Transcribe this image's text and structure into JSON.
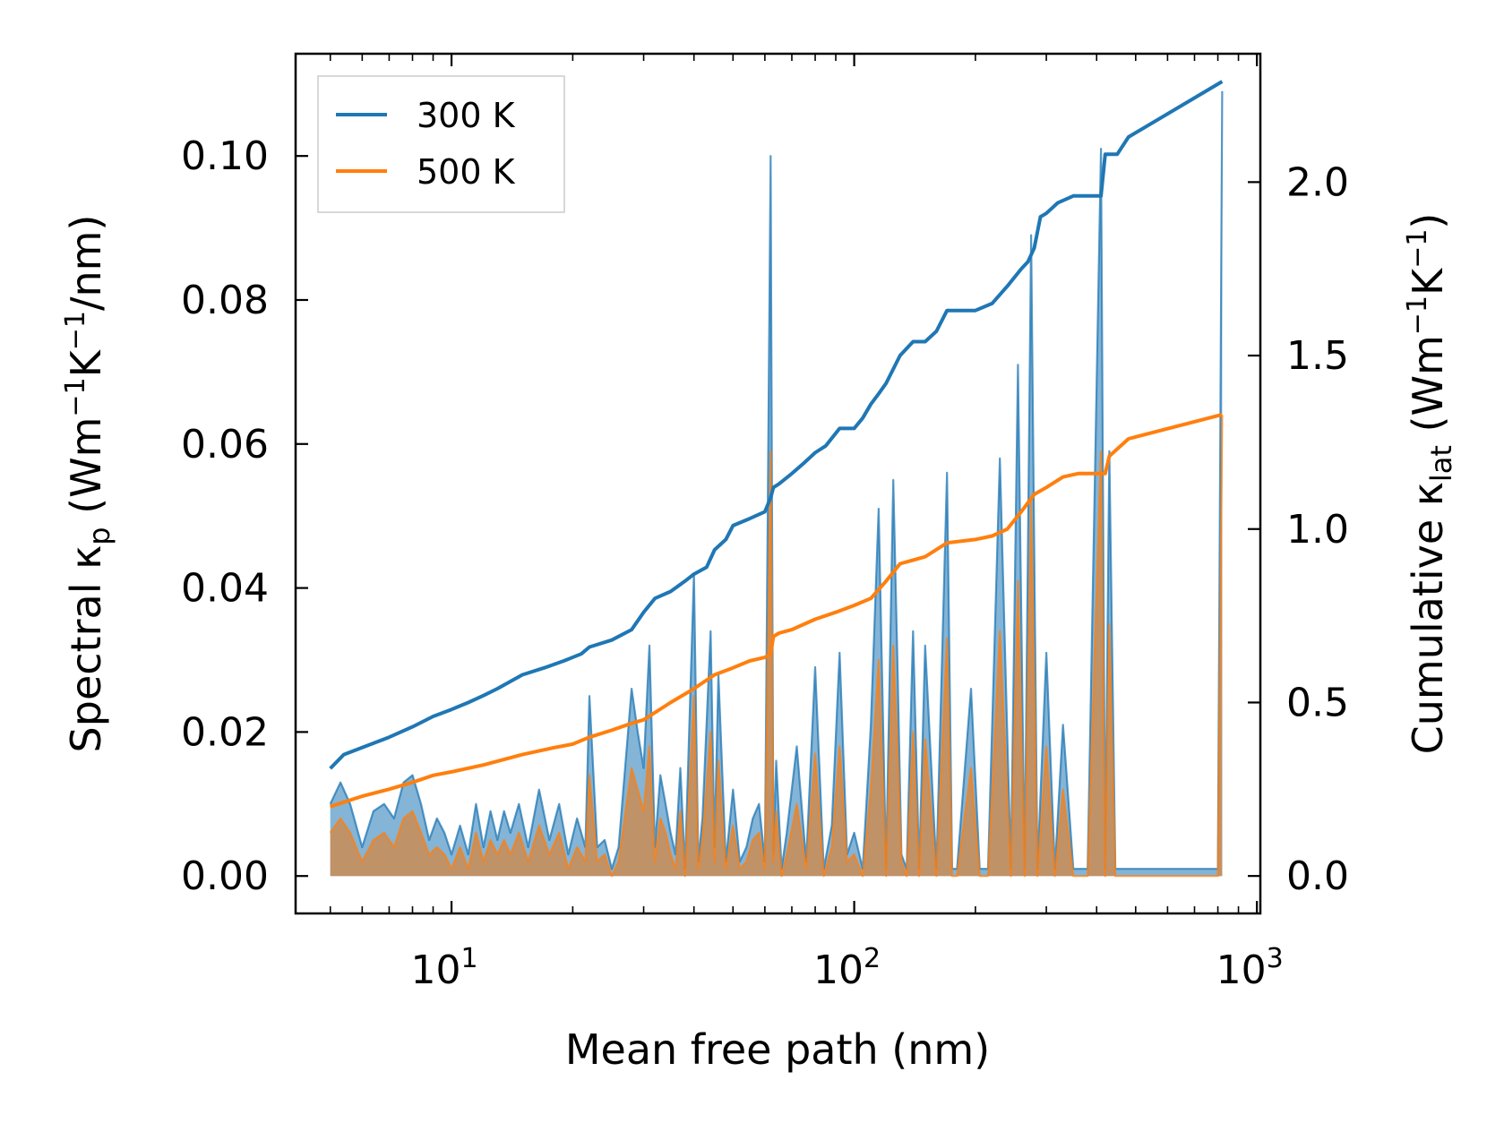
{
  "chart_data": {
    "type": "line",
    "x_scale": "log",
    "xlabel": "Mean free path (nm)",
    "ylabel_left": {
      "prefix": "Spectral κ",
      "sub": "p",
      "units_open": " (Wm",
      "exp1": "−1",
      "mid": "K",
      "exp2": "−1",
      "tail": "/nm)"
    },
    "ylabel_right": {
      "prefix": "Cumulative κ",
      "sub": "lat",
      "units_open": " (Wm",
      "exp1": "−1",
      "mid": "K",
      "exp2": "−1",
      "tail": ")"
    },
    "xlim": [
      4.1,
      1020
    ],
    "ylim_left": [
      -0.0052,
      0.1142
    ],
    "ylim_right": [
      -0.108,
      2.37
    ],
    "x_ticks": [
      {
        "base": "10",
        "exp": "1",
        "value": 10
      },
      {
        "base": "10",
        "exp": "2",
        "value": 100
      },
      {
        "base": "10",
        "exp": "3",
        "value": 1000
      }
    ],
    "y_left_ticks": [
      {
        "label": "0.00",
        "value": 0
      },
      {
        "label": "0.02",
        "value": 0.02
      },
      {
        "label": "0.04",
        "value": 0.04
      },
      {
        "label": "0.06",
        "value": 0.06
      },
      {
        "label": "0.08",
        "value": 0.08
      },
      {
        "label": "0.10",
        "value": 0.1
      }
    ],
    "y_right_ticks": [
      {
        "label": "0.0",
        "value": 0
      },
      {
        "label": "0.5",
        "value": 0.5
      },
      {
        "label": "1.0",
        "value": 1.0
      },
      {
        "label": "1.5",
        "value": 1.5
      },
      {
        "label": "2.0",
        "value": 2.0
      }
    ],
    "legend": {
      "position": "top-left",
      "entries": [
        {
          "label": "300 K",
          "color": "#1f77b4"
        },
        {
          "label": "500 K",
          "color": "#ff7f0e"
        }
      ]
    },
    "series": [
      {
        "name": "300 K",
        "color": "#1f77b4",
        "axis": "right",
        "kind": "cumulative",
        "x": [
          5,
          5.4,
          6,
          7,
          8,
          9,
          10,
          11,
          12,
          13,
          15,
          17,
          19,
          21,
          22,
          25,
          28,
          30,
          32,
          35,
          38,
          40,
          43,
          45,
          48,
          50,
          55,
          60,
          62,
          63,
          65,
          70,
          75,
          80,
          85,
          92,
          100,
          105,
          110,
          115,
          120,
          130,
          140,
          150,
          160,
          170,
          200,
          220,
          240,
          260,
          270,
          280,
          290,
          300,
          320,
          350,
          410,
          420,
          430,
          450,
          480,
          820
        ],
        "y": [
          0.31,
          0.35,
          0.37,
          0.4,
          0.43,
          0.46,
          0.48,
          0.5,
          0.52,
          0.54,
          0.58,
          0.6,
          0.62,
          0.64,
          0.66,
          0.68,
          0.71,
          0.76,
          0.8,
          0.82,
          0.85,
          0.87,
          0.89,
          0.94,
          0.97,
          1.01,
          1.03,
          1.05,
          1.09,
          1.12,
          1.13,
          1.16,
          1.19,
          1.22,
          1.24,
          1.29,
          1.29,
          1.32,
          1.36,
          1.39,
          1.42,
          1.5,
          1.54,
          1.54,
          1.57,
          1.63,
          1.63,
          1.65,
          1.7,
          1.75,
          1.77,
          1.81,
          1.9,
          1.91,
          1.94,
          1.96,
          1.96,
          2.08,
          2.08,
          2.08,
          2.13,
          2.29
        ]
      },
      {
        "name": "500 K",
        "color": "#ff7f0e",
        "axis": "right",
        "kind": "cumulative",
        "x": [
          5,
          6,
          7,
          8,
          9,
          10,
          12,
          15,
          18,
          20,
          22,
          25,
          28,
          30,
          35,
          40,
          45,
          50,
          55,
          60,
          62,
          63,
          65,
          70,
          80,
          90,
          100,
          110,
          120,
          130,
          150,
          170,
          200,
          220,
          240,
          260,
          280,
          300,
          330,
          360,
          420,
          430,
          480,
          820
        ],
        "y": [
          0.2,
          0.23,
          0.25,
          0.27,
          0.29,
          0.3,
          0.32,
          0.35,
          0.37,
          0.38,
          0.4,
          0.42,
          0.44,
          0.45,
          0.5,
          0.54,
          0.58,
          0.6,
          0.62,
          0.63,
          0.64,
          0.69,
          0.7,
          0.71,
          0.74,
          0.76,
          0.78,
          0.8,
          0.85,
          0.9,
          0.92,
          0.96,
          0.97,
          0.98,
          1.0,
          1.05,
          1.1,
          1.12,
          1.15,
          1.16,
          1.16,
          1.21,
          1.26,
          1.33
        ]
      },
      {
        "name": "300 K spectral",
        "color": "#1f77b4",
        "axis": "left",
        "kind": "spectral",
        "x": [
          5,
          5.3,
          5.6,
          6,
          6.4,
          6.8,
          7.2,
          7.6,
          8,
          8.4,
          8.8,
          9.2,
          9.6,
          10,
          10.5,
          11,
          11.5,
          12,
          12.5,
          13,
          13.5,
          14,
          14.7,
          15.5,
          16.5,
          17.5,
          18.5,
          19.5,
          20.5,
          21.5,
          22,
          23,
          24,
          25,
          26,
          28,
          29,
          30,
          31,
          32,
          33,
          34,
          35,
          36,
          37,
          38,
          40,
          41,
          42,
          44,
          45,
          46,
          48,
          50,
          52,
          54,
          56,
          58,
          60,
          62,
          63,
          64,
          66,
          68,
          72,
          76,
          80,
          84,
          88,
          92,
          96,
          100,
          105,
          110,
          115,
          120,
          125,
          128,
          131,
          135,
          140,
          145,
          150,
          160,
          170,
          175,
          180,
          195,
          205,
          215,
          230,
          245,
          255,
          265,
          275,
          285,
          290,
          300,
          315,
          330,
          350,
          380,
          410,
          420,
          430,
          445,
          460,
          480,
          500,
          800,
          820
        ],
        "y": [
          0.01,
          0.013,
          0.01,
          0.004,
          0.009,
          0.01,
          0.008,
          0.013,
          0.014,
          0.01,
          0.005,
          0.008,
          0.006,
          0.003,
          0.007,
          0.003,
          0.01,
          0.004,
          0.009,
          0.005,
          0.009,
          0.006,
          0.01,
          0.004,
          0.012,
          0.005,
          0.01,
          0.003,
          0.008,
          0.004,
          0.025,
          0.004,
          0.005,
          0.001,
          0.004,
          0.026,
          0.02,
          0.015,
          0.032,
          0.004,
          0.014,
          0.01,
          0.006,
          0.003,
          0.015,
          0.001,
          0.042,
          0.002,
          0.008,
          0.034,
          0.004,
          0.028,
          0.002,
          0.012,
          0.002,
          0.004,
          0.008,
          0.01,
          0.002,
          0.1,
          0.003,
          0.016,
          0.001,
          0.006,
          0.018,
          0.002,
          0.029,
          0.001,
          0.007,
          0.031,
          0.003,
          0.006,
          0.001,
          0.021,
          0.051,
          0.001,
          0.055,
          0.03,
          0.003,
          0.001,
          0.034,
          0.001,
          0.032,
          0.001,
          0.056,
          0.001,
          0.001,
          0.026,
          0.001,
          0.001,
          0.058,
          0.001,
          0.071,
          0.001,
          0.089,
          0.001,
          0.011,
          0.031,
          0.001,
          0.021,
          0.001,
          0.001,
          0.101,
          0.001,
          0.059,
          0.001,
          0.001,
          0.001,
          0.001,
          0.001,
          0.109
        ]
      },
      {
        "name": "500 K spectral",
        "color": "#ff7f0e",
        "axis": "left",
        "kind": "spectral",
        "x": [
          5,
          5.3,
          5.6,
          6,
          6.4,
          6.8,
          7.2,
          7.6,
          8,
          8.4,
          8.8,
          9.2,
          9.6,
          10,
          10.5,
          11,
          11.5,
          12,
          12.5,
          13,
          13.5,
          14,
          14.7,
          15.5,
          16.5,
          17.5,
          18.5,
          19.5,
          20.5,
          21.5,
          22,
          23,
          24,
          25,
          26,
          28,
          29,
          30,
          31,
          32,
          33,
          34,
          35,
          36,
          37,
          38,
          40,
          41,
          42,
          44,
          45,
          46,
          48,
          50,
          52,
          54,
          56,
          58,
          60,
          62,
          63,
          64,
          66,
          68,
          72,
          76,
          80,
          84,
          88,
          92,
          96,
          100,
          105,
          110,
          115,
          120,
          125,
          128,
          131,
          135,
          140,
          145,
          150,
          160,
          170,
          175,
          180,
          195,
          205,
          215,
          230,
          245,
          255,
          265,
          275,
          285,
          290,
          300,
          315,
          330,
          350,
          380,
          410,
          420,
          430,
          445,
          460,
          480,
          500,
          800,
          820
        ],
        "y": [
          0.006,
          0.008,
          0.006,
          0.002,
          0.005,
          0.006,
          0.004,
          0.008,
          0.009,
          0.006,
          0.003,
          0.004,
          0.003,
          0.001,
          0.004,
          0.001,
          0.006,
          0.002,
          0.005,
          0.003,
          0.005,
          0.003,
          0.006,
          0.002,
          0.007,
          0.003,
          0.006,
          0.001,
          0.004,
          0.002,
          0.014,
          0.002,
          0.003,
          0.0,
          0.002,
          0.015,
          0.012,
          0.009,
          0.018,
          0.002,
          0.008,
          0.006,
          0.003,
          0.001,
          0.009,
          0.0,
          0.025,
          0.001,
          0.005,
          0.02,
          0.002,
          0.016,
          0.001,
          0.007,
          0.001,
          0.002,
          0.005,
          0.006,
          0.001,
          0.059,
          0.002,
          0.009,
          0.0,
          0.003,
          0.01,
          0.001,
          0.017,
          0.0,
          0.004,
          0.018,
          0.002,
          0.003,
          0.0,
          0.012,
          0.03,
          0.0,
          0.032,
          0.018,
          0.002,
          0.0,
          0.02,
          0.0,
          0.019,
          0.0,
          0.033,
          0.0,
          0.0,
          0.015,
          0.0,
          0.0,
          0.034,
          0.0,
          0.041,
          0.0,
          0.052,
          0.0,
          0.006,
          0.018,
          0.0,
          0.012,
          0.0,
          0.0,
          0.059,
          0.0,
          0.035,
          0.0,
          0.0,
          0.0,
          0.0,
          0.0,
          0.064
        ]
      }
    ]
  }
}
